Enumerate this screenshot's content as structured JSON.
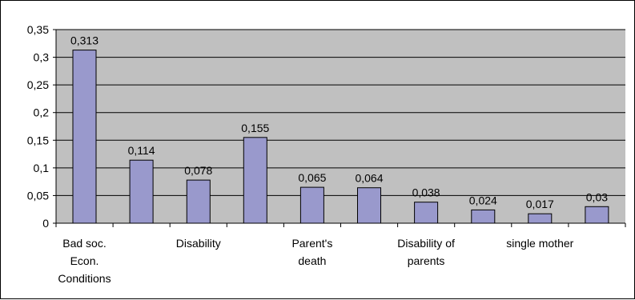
{
  "colors": {
    "plot_background": "#c0c0c0",
    "bar_fill": "#9999cc",
    "bar_stroke": "#000000",
    "gridline": "#000000",
    "axis": "#000000"
  },
  "chart_data": {
    "type": "bar",
    "title": "",
    "xlabel": "",
    "ylabel": "",
    "categories": [
      "Bad soc. Econ. Conditions",
      "",
      "Disability",
      "",
      "Parent's death",
      "",
      "Disability of parents",
      "",
      "single mother",
      ""
    ],
    "values": [
      0.313,
      0.114,
      0.078,
      0.155,
      0.065,
      0.064,
      0.038,
      0.024,
      0.017,
      0.03
    ],
    "data_labels": [
      "0,313",
      "0,114",
      "0,078",
      "0,155",
      "0,065",
      "0,064",
      "0,038",
      "0,024",
      "0,017",
      "0,03"
    ],
    "ylim": [
      0,
      0.35
    ],
    "yticks": [
      0,
      0.05,
      0.1,
      0.15,
      0.2,
      0.25,
      0.3,
      0.35
    ],
    "ytick_labels": [
      "0",
      "0,05",
      "0,1",
      "0,15",
      "0,2",
      "0,25",
      "0,3",
      "0,35"
    ],
    "x_label_lines": [
      [
        "Bad soc.",
        "Econ.",
        "Conditions"
      ],
      [],
      [
        "Disability"
      ],
      [],
      [
        "Parent's",
        "death"
      ],
      [],
      [
        "Disability of",
        "parents"
      ],
      [],
      [
        "single mother"
      ],
      []
    ],
    "grid": true,
    "legend": "none"
  }
}
